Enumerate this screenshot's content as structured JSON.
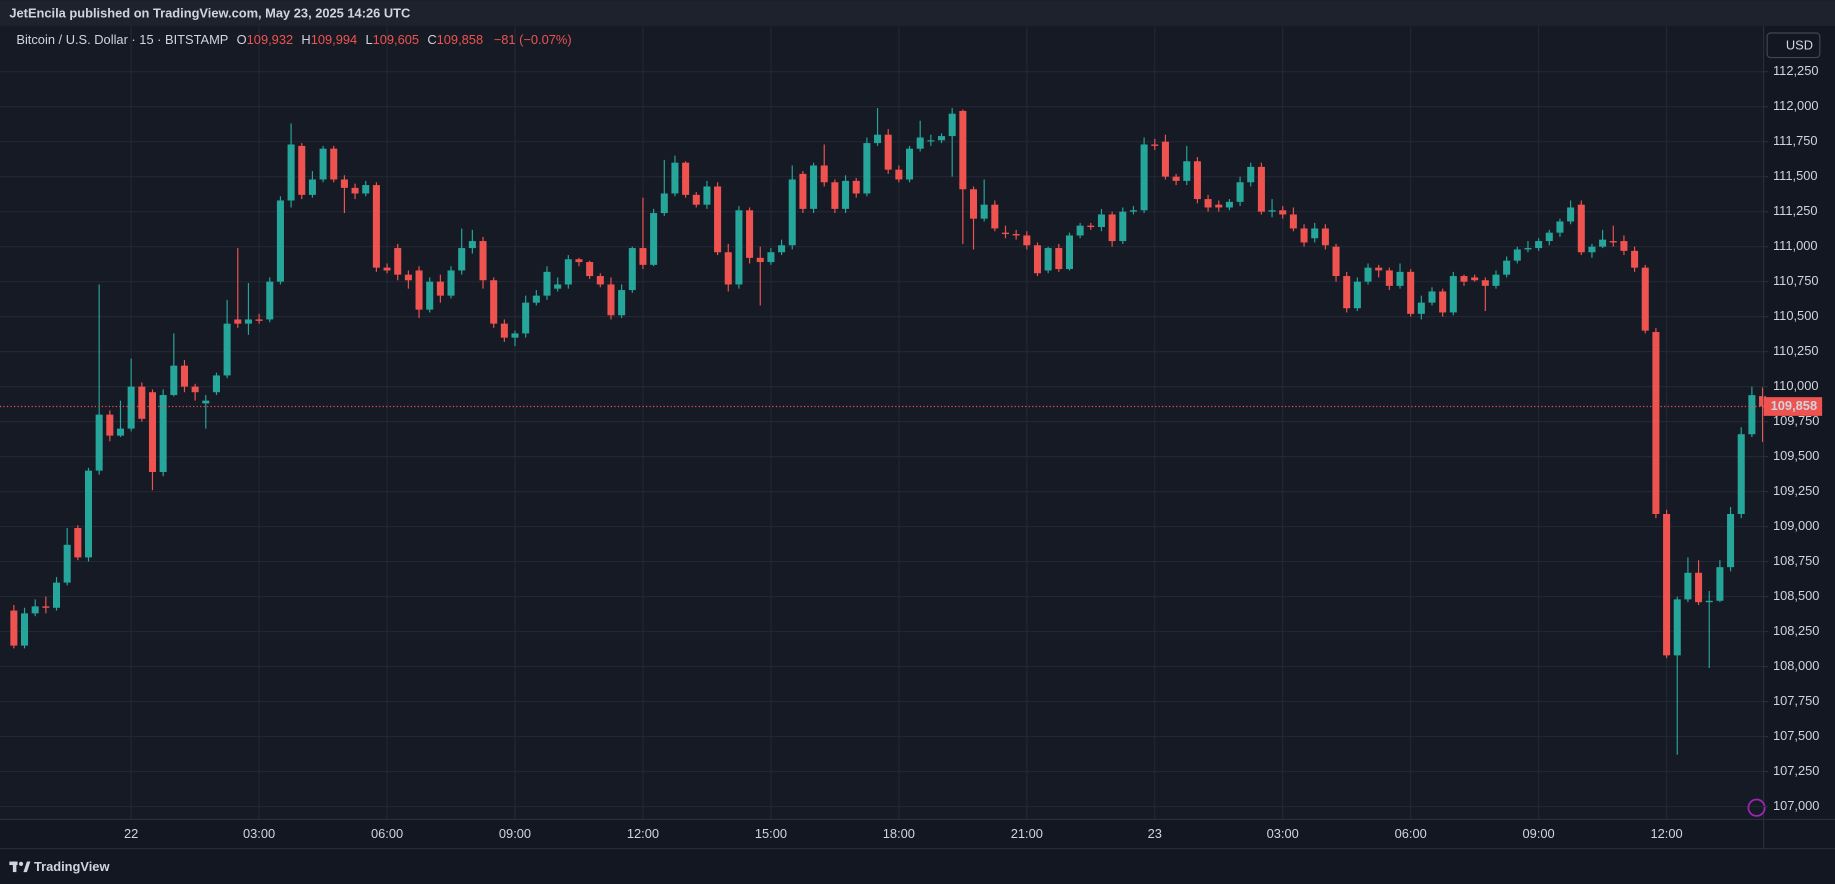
{
  "header": {
    "publisher": "JetEncila published on TradingView.com, May 23, 2025 14:26 UTC"
  },
  "legend": {
    "symbol": "Bitcoin / U.S. Dollar · 15 · BITSTAMP",
    "fields": [
      {
        "key": "O",
        "value": "109,932"
      },
      {
        "key": "H",
        "value": "109,994"
      },
      {
        "key": "L",
        "value": "109,605"
      },
      {
        "key": "C",
        "value": "109,858"
      }
    ],
    "change": "−81 (−0.07%)"
  },
  "currency": "USD",
  "footer": {
    "brand": "TradingView"
  },
  "chart_data": {
    "type": "candlestick",
    "up_color": "#26a69a",
    "down_color": "#ef5350",
    "grid": true,
    "open": [
      108400,
      108150,
      108380,
      108430,
      108420,
      108600,
      108990,
      108780,
      109400,
      109800,
      109650,
      109700,
      110000,
      109960,
      109390,
      109940,
      110150,
      110000,
      109880,
      109960,
      110080,
      110480,
      110450,
      110480,
      110480,
      110750,
      111330,
      111720,
      111370,
      111480,
      111700,
      111480,
      111420,
      111380,
      111440,
      110850,
      110990,
      110800,
      110830,
      110550,
      110750,
      110650,
      110830,
      110990,
      111040,
      110760,
      110450,
      110350,
      110380,
      110600,
      110650,
      110700,
      110730,
      110910,
      110890,
      110790,
      110730,
      110510,
      110690,
      110990,
      110870,
      111240,
      111380,
      111600,
      111370,
      111300,
      111430,
      110960,
      110730,
      111260,
      110920,
      110890,
      110960,
      111010,
      111520,
      111270,
      111580,
      111460,
      111270,
      111470,
      111380,
      111740,
      111800,
      111550,
      111480,
      111700,
      111760,
      111760,
      111790,
      111970,
      111410,
      111200,
      111300,
      111100,
      111090,
      111080,
      111010,
      110830,
      110990,
      110840,
      111080,
      111150,
      111140,
      111230,
      111040,
      111250,
      111260,
      111730,
      111750,
      111500,
      111470,
      111610,
      111340,
      111300,
      111280,
      111320,
      111460,
      111570,
      111250,
      111260,
      111230,
      111130,
      111060,
      111130,
      111000,
      110790,
      110560,
      110750,
      110850,
      110830,
      110720,
      110820,
      110520,
      110600,
      110680,
      110530,
      110790,
      110780,
      110760,
      110720,
      110800,
      110900,
      110980,
      110990,
      111040,
      111100,
      111180,
      111300,
      110960,
      111000,
      111040,
      111040,
      110970,
      110850,
      110390,
      109090,
      108080,
      108480,
      108670,
      108460,
      108470,
      108710,
      109090,
      109660,
      109932
    ],
    "high": [
      108440,
      108420,
      108480,
      108500,
      108640,
      108990,
      109010,
      109420,
      110730,
      109830,
      109900,
      110200,
      110030,
      109980,
      109980,
      110380,
      110190,
      110020,
      109940,
      110100,
      110620,
      110990,
      110740,
      110520,
      110780,
      111360,
      111880,
      111740,
      111540,
      111720,
      111720,
      111510,
      111450,
      111470,
      111460,
      110880,
      111020,
      110830,
      110860,
      110780,
      110800,
      110860,
      111130,
      111120,
      111070,
      110780,
      110480,
      110400,
      110650,
      110690,
      110860,
      110780,
      110940,
      110920,
      110900,
      110810,
      110780,
      110730,
      111000,
      111350,
      111270,
      111620,
      111650,
      111610,
      111390,
      111470,
      111460,
      111020,
      111290,
      111280,
      111000,
      110990,
      111050,
      111580,
      111540,
      111600,
      111730,
      111480,
      111510,
      111490,
      111780,
      111990,
      111840,
      111580,
      111720,
      111900,
      111800,
      111810,
      111990,
      111980,
      111430,
      111480,
      111330,
      111150,
      111120,
      111110,
      111030,
      111000,
      111020,
      111100,
      111170,
      111170,
      111270,
      111250,
      111280,
      111290,
      111780,
      111770,
      111800,
      111520,
      111720,
      111640,
      111370,
      111330,
      111340,
      111500,
      111600,
      111600,
      111340,
      111290,
      111280,
      111160,
      111170,
      111160,
      111020,
      110820,
      110780,
      110880,
      110870,
      110850,
      110880,
      110840,
      110650,
      110710,
      110700,
      110820,
      110800,
      110800,
      110780,
      110830,
      110930,
      111000,
      111040,
      111060,
      111120,
      111200,
      111330,
      111330,
      111020,
      111120,
      111150,
      111080,
      111000,
      110870,
      110420,
      109120,
      108500,
      108780,
      108760,
      108540,
      108760,
      109140,
      109710,
      110000,
      109994
    ],
    "low": [
      108130,
      108130,
      108360,
      108380,
      108400,
      108580,
      108760,
      108750,
      109370,
      109610,
      109640,
      109680,
      109750,
      109260,
      109360,
      109930,
      109960,
      109900,
      109700,
      109940,
      110060,
      110420,
      110370,
      110450,
      110460,
      110730,
      111280,
      111340,
      111350,
      111460,
      111460,
      111240,
      111340,
      111360,
      110820,
      110810,
      110760,
      110700,
      110490,
      110530,
      110600,
      110630,
      110800,
      110950,
      110700,
      110420,
      110320,
      110290,
      110350,
      110580,
      110620,
      110680,
      110700,
      110860,
      110770,
      110710,
      110480,
      110490,
      110670,
      110840,
      110860,
      111220,
      111360,
      111350,
      111280,
      111270,
      110940,
      110680,
      110700,
      110880,
      110580,
      110870,
      110940,
      110980,
      111240,
      111240,
      111430,
      111240,
      111240,
      111350,
      111360,
      111720,
      111520,
      111460,
      111460,
      111680,
      111720,
      111740,
      111500,
      111020,
      110980,
      111180,
      111110,
      111060,
      111050,
      110980,
      110790,
      110810,
      110820,
      110830,
      111060,
      111120,
      111110,
      111000,
      111020,
      111230,
      111240,
      111690,
      111480,
      111440,
      111440,
      111310,
      111250,
      111250,
      111260,
      111290,
      111430,
      111230,
      111210,
      111200,
      111110,
      111000,
      111030,
      110980,
      110750,
      110530,
      110540,
      110730,
      110780,
      110690,
      110700,
      110500,
      110480,
      110580,
      110500,
      110510,
      110720,
      110750,
      110540,
      110700,
      110780,
      110880,
      110960,
      110970,
      111010,
      111070,
      111160,
      110940,
      110920,
      110990,
      111000,
      110940,
      110820,
      110380,
      109060,
      108060,
      107370,
      108460,
      108440,
      107990,
      108460,
      108680,
      109060,
      109640,
      109605
    ],
    "close": [
      108150,
      108380,
      108430,
      108420,
      108600,
      108870,
      108780,
      109400,
      109800,
      109650,
      109700,
      110000,
      109770,
      109390,
      109940,
      110150,
      110000,
      109960,
      109900,
      110080,
      110450,
      110450,
      110480,
      110470,
      110750,
      111330,
      111730,
      111370,
      111480,
      111700,
      111480,
      111420,
      111380,
      111440,
      110850,
      110830,
      110800,
      110760,
      110550,
      110750,
      110650,
      110830,
      110990,
      111040,
      110760,
      110450,
      110350,
      110380,
      110600,
      110650,
      110820,
      110730,
      110910,
      110890,
      110790,
      110730,
      110510,
      110690,
      110990,
      110870,
      111240,
      111380,
      111600,
      111370,
      111300,
      111430,
      110960,
      110730,
      111260,
      110920,
      110890,
      110960,
      111010,
      111480,
      111270,
      111580,
      111460,
      111270,
      111470,
      111380,
      111740,
      111800,
      111550,
      111480,
      111700,
      111780,
      111760,
      111790,
      111950,
      111410,
      111200,
      111300,
      111130,
      111090,
      111080,
      111010,
      110810,
      110990,
      110840,
      111080,
      111150,
      111140,
      111230,
      111040,
      111250,
      111260,
      111730,
      111720,
      111500,
      111470,
      111610,
      111340,
      111280,
      111280,
      111320,
      111460,
      111570,
      111250,
      111260,
      111230,
      111130,
      111030,
      111130,
      111010,
      110790,
      110560,
      110750,
      110850,
      110830,
      110720,
      110820,
      110520,
      110600,
      110680,
      110530,
      110790,
      110750,
      110760,
      110720,
      110800,
      110900,
      110980,
      110990,
      111040,
      111100,
      111180,
      111280,
      110960,
      111000,
      111050,
      111030,
      110970,
      110850,
      110400,
      109090,
      108080,
      108480,
      108670,
      108460,
      108470,
      108710,
      109090,
      109660,
      109939,
      109858
    ],
    "xlim": [
      -1.3,
      164.1
    ],
    "xticks": [
      {
        "value": 11,
        "label": "22"
      },
      {
        "value": 23,
        "label": "03:00"
      },
      {
        "value": 35,
        "label": "06:00"
      },
      {
        "value": 47,
        "label": "09:00"
      },
      {
        "value": 59,
        "label": "12:00"
      },
      {
        "value": 71,
        "label": "15:00"
      },
      {
        "value": 83,
        "label": "18:00"
      },
      {
        "value": 95,
        "label": "21:00"
      },
      {
        "value": 107,
        "label": "23"
      },
      {
        "value": 119,
        "label": "03:00"
      },
      {
        "value": 131,
        "label": "06:00"
      },
      {
        "value": 143,
        "label": "09:00"
      },
      {
        "value": 155,
        "label": "12:00"
      }
    ],
    "ylim": [
      106908,
      112560
    ],
    "yticks": [
      {
        "value": 107000,
        "label": "107,000"
      },
      {
        "value": 107250,
        "label": "107,250"
      },
      {
        "value": 107500,
        "label": "107,500"
      },
      {
        "value": 107750,
        "label": "107,750"
      },
      {
        "value": 108000,
        "label": "108,000"
      },
      {
        "value": 108250,
        "label": "108,250"
      },
      {
        "value": 108500,
        "label": "108,500"
      },
      {
        "value": 108750,
        "label": "108,750"
      },
      {
        "value": 109000,
        "label": "109,000"
      },
      {
        "value": 109250,
        "label": "109,250"
      },
      {
        "value": 109500,
        "label": "109,500"
      },
      {
        "value": 109750,
        "label": "109,750"
      },
      {
        "value": 110000,
        "label": "110,000"
      },
      {
        "value": 110250,
        "label": "110,250"
      },
      {
        "value": 110500,
        "label": "110,500"
      },
      {
        "value": 110750,
        "label": "110,750"
      },
      {
        "value": 111000,
        "label": "111,000"
      },
      {
        "value": 111250,
        "label": "111,250"
      },
      {
        "value": 111500,
        "label": "111,500"
      },
      {
        "value": 111750,
        "label": "111,750"
      },
      {
        "value": 112000,
        "label": "112,000"
      },
      {
        "value": 112250,
        "label": "112,250"
      }
    ],
    "last_price": {
      "value": 109858,
      "label": "109,858"
    }
  }
}
